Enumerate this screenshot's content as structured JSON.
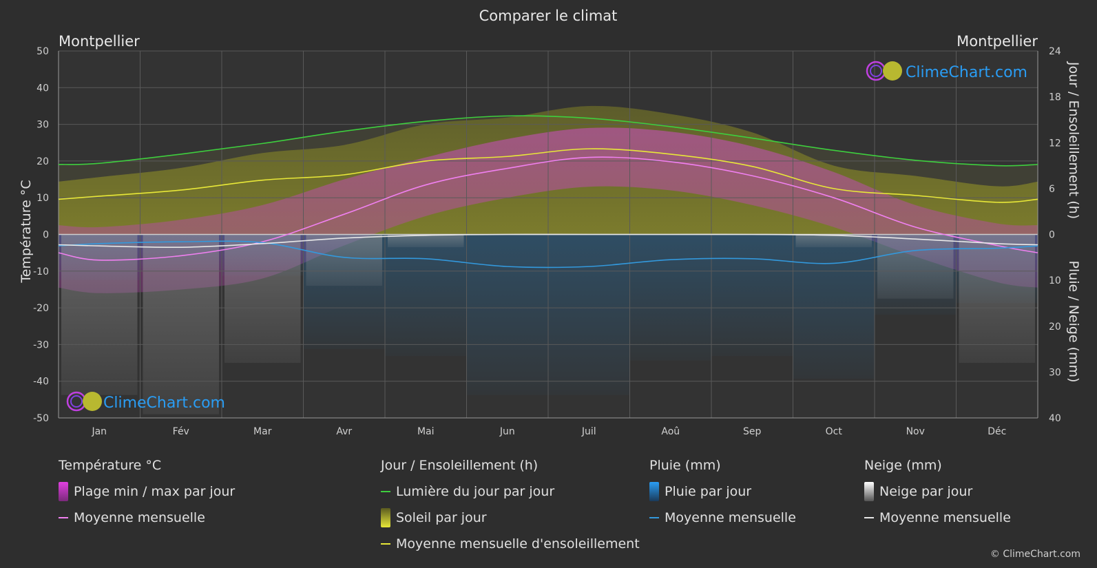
{
  "chart_data": {
    "type": "line",
    "title": "Comparer le climat",
    "location_left": "Montpellier",
    "location_right": "Montpellier",
    "categories": [
      "Jan",
      "Fév",
      "Mar",
      "Avr",
      "Mai",
      "Jun",
      "Juil",
      "Aoû",
      "Sep",
      "Oct",
      "Nov",
      "Déc"
    ],
    "y_left": {
      "label": "Température °C",
      "lim": [
        -50,
        50
      ],
      "ticks": [
        50,
        40,
        30,
        20,
        10,
        0,
        -10,
        -20,
        -30,
        -40,
        -50
      ]
    },
    "y_right_top": {
      "label": "Jour / Ensoleillement (h)",
      "lim": [
        0,
        24
      ],
      "ticks": [
        24,
        18,
        12,
        6,
        0
      ]
    },
    "y_right_bottom": {
      "label": "Pluie / Neige (mm)",
      "lim": [
        0,
        40
      ],
      "ticks": [
        0,
        10,
        20,
        30,
        40
      ]
    },
    "series": [
      {
        "name": "Lumière du jour par jour",
        "axis": "hours",
        "color": "#3ecf3e",
        "values": [
          9.3,
          10.5,
          11.9,
          13.5,
          14.8,
          15.5,
          15.2,
          14.1,
          12.6,
          11.0,
          9.7,
          9.0
        ]
      },
      {
        "name": "Moyenne mensuelle d'ensoleillement",
        "axis": "hours",
        "color": "#e8e838",
        "values": [
          5.0,
          5.8,
          7.1,
          7.8,
          9.6,
          10.2,
          11.2,
          10.5,
          8.9,
          6.0,
          5.1,
          4.2
        ]
      },
      {
        "name": "Moyenne mensuelle",
        "group": "Température °C",
        "axis": "temp",
        "color": "#f080f0",
        "values": [
          -7.0,
          -5.8,
          -2.0,
          5.5,
          13.5,
          18.0,
          21.0,
          19.8,
          16.0,
          10.0,
          2.0,
          -3.0
        ]
      },
      {
        "name": "Moyenne mensuelle",
        "group": "Pluie (mm)",
        "axis": "precip",
        "color": "#3399dd",
        "values": [
          2.0,
          1.6,
          1.8,
          5.0,
          5.3,
          7.0,
          7.0,
          5.5,
          5.3,
          6.3,
          3.5,
          3.0
        ]
      },
      {
        "name": "Moyenne mensuelle",
        "group": "Neige (mm)",
        "axis": "precip",
        "color": "#e8e8e8",
        "values": [
          2.5,
          2.8,
          2.0,
          0.8,
          0.2,
          0.0,
          0.0,
          0.0,
          0.0,
          0.2,
          1.0,
          2.0
        ]
      }
    ],
    "temp_band": {
      "name": "Plage min / max par jour",
      "min": [
        -16,
        -15,
        -12,
        -3,
        5,
        10,
        13,
        12,
        8,
        2,
        -6,
        -13
      ],
      "max": [
        2,
        4,
        8,
        15,
        21,
        26,
        29,
        28,
        24,
        17,
        8,
        3
      ]
    },
    "grid": true
  },
  "legend": {
    "temp": {
      "title": "Température °C",
      "items": [
        "Plage min / max par jour",
        "Moyenne mensuelle"
      ]
    },
    "sun": {
      "title": "Jour / Ensoleillement (h)",
      "items": [
        "Lumière du jour par jour",
        "Soleil par jour",
        "Moyenne mensuelle d'ensoleillement"
      ]
    },
    "rain": {
      "title": "Pluie (mm)",
      "items": [
        "Pluie par jour",
        "Moyenne mensuelle"
      ]
    },
    "snow": {
      "title": "Neige (mm)",
      "items": [
        "Neige par jour",
        "Moyenne mensuelle"
      ]
    }
  },
  "brand": {
    "name": "ClimeChart.com",
    "copyright": "© ClimeChart.com"
  },
  "colors": {
    "background": "#2e2e2e",
    "daylight": "#3ecf3e",
    "sunshine": "#e8e838",
    "temp": "#f080f0",
    "rain": "#3399dd",
    "snow": "#e8e8e8",
    "brand": "#2a9df4",
    "band": "#e040e0"
  }
}
